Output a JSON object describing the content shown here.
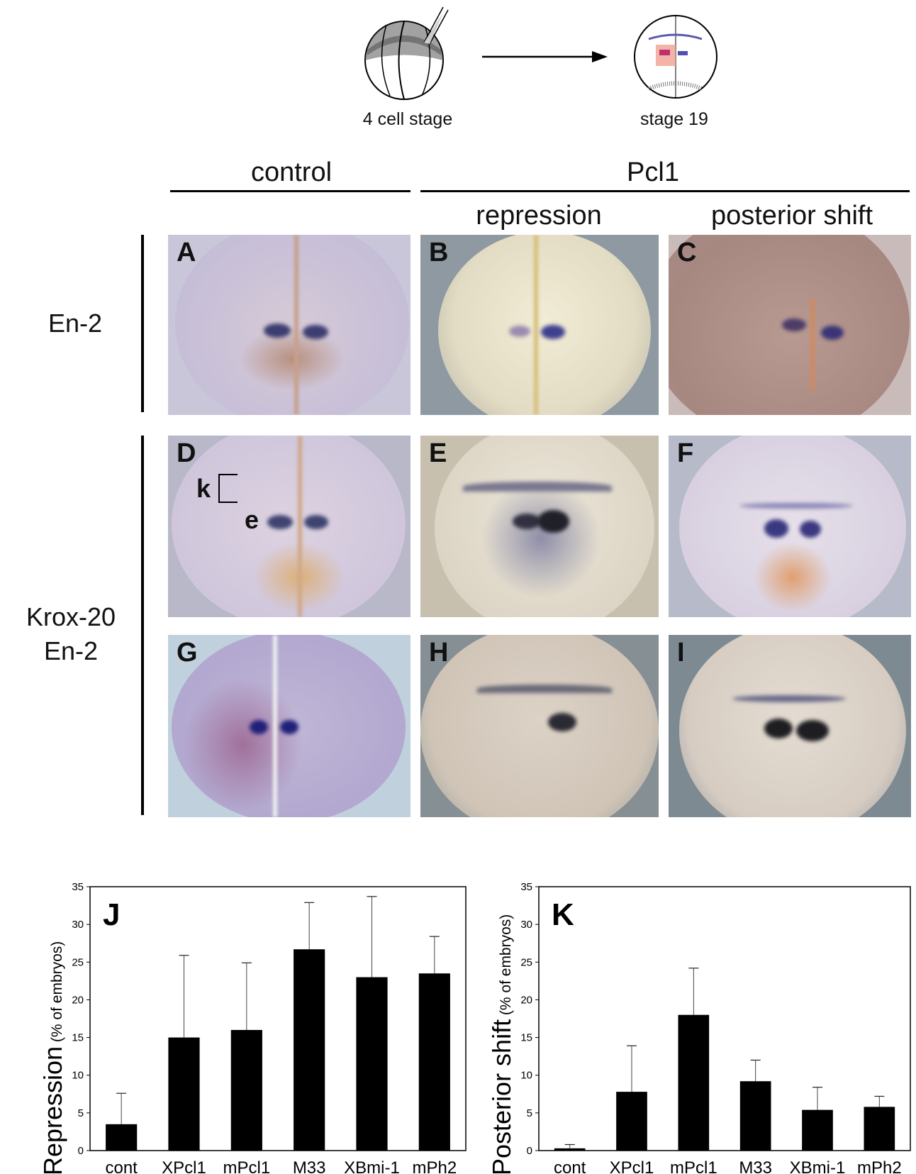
{
  "schematic": {
    "left_caption": "4 cell stage",
    "right_caption": "stage 19"
  },
  "headers": {
    "control": "control",
    "pcl1": "Pcl1",
    "repression": "repression",
    "posterior_shift": "posterior shift"
  },
  "row_labels": {
    "row1": "En-2",
    "row2_line1": "Krox-20",
    "row2_line2": "En-2"
  },
  "panels": {
    "A": "A",
    "B": "B",
    "C": "C",
    "D": "D",
    "E": "E",
    "F": "F",
    "G": "G",
    "H": "H",
    "I": "I",
    "D_marker_k": "k",
    "D_marker_e": "e"
  },
  "chart_data": [
    {
      "type": "bar",
      "panel_label": "J",
      "ylabel_main": "Repression",
      "ylabel_sub": "(% of embryos)",
      "xlabel": "",
      "categories": [
        "cont",
        "XPcl1",
        "mPcl1",
        "M33",
        "XBmi-1",
        "mPh2"
      ],
      "values": [
        3.5,
        15,
        16,
        26.7,
        23,
        23.5
      ],
      "error_upper": [
        7.6,
        25.9,
        24.9,
        32.9,
        33.7,
        28.4
      ],
      "ylim": [
        0,
        35
      ],
      "yticks": [
        "0",
        "5",
        "10",
        "15",
        "20",
        "25",
        "30",
        "35"
      ],
      "grid": false,
      "bar_color": "#000000"
    },
    {
      "type": "bar",
      "panel_label": "K",
      "ylabel_main": "Posterior shift",
      "ylabel_sub": "(% of embryos)",
      "xlabel": "",
      "categories": [
        "cont",
        "XPcl1",
        "mPcl1",
        "M33",
        "XBmi-1",
        "mPh2"
      ],
      "values": [
        0.3,
        7.8,
        18,
        9.2,
        5.4,
        5.8
      ],
      "error_upper": [
        0.8,
        13.9,
        24.2,
        12,
        8.4,
        7.2
      ],
      "ylim": [
        0,
        35
      ],
      "yticks": [
        "0",
        "5",
        "10",
        "15",
        "20",
        "25",
        "30",
        "35"
      ],
      "grid": false,
      "bar_color": "#000000"
    }
  ]
}
